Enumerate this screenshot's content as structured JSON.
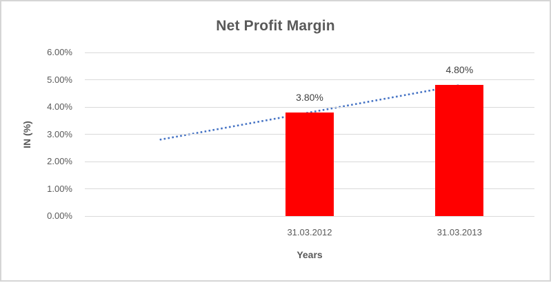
{
  "chart_data": {
    "type": "bar",
    "title": "Net Profit Margin",
    "xlabel": "Years",
    "ylabel": "IN (%)",
    "categories": [
      "",
      "31.03.2012",
      "31.03.2013"
    ],
    "values": [
      null,
      3.8,
      4.8
    ],
    "data_labels": [
      null,
      "3.80%",
      "4.80%"
    ],
    "y_ticks": [
      "0.00%",
      "1.00%",
      "2.00%",
      "3.00%",
      "4.00%",
      "5.00%",
      "6.00%"
    ],
    "ylim": [
      0,
      6
    ],
    "y_step": 1,
    "grid": true,
    "legend": "none",
    "bar_color": "#FF0000",
    "trendline": {
      "type": "linear",
      "style": "dotted",
      "color": "#4472C4",
      "points": [
        {
          "x_index": 0,
          "value": 2.8
        },
        {
          "x_index": 2,
          "value": 4.8
        }
      ]
    },
    "colors": {
      "title_text": "#595959",
      "axis_text": "#595959",
      "data_label_text": "#404040",
      "gridline": "#D9D9D9",
      "chart_border": "#D5D5D5",
      "background": "#FFFFFF"
    }
  }
}
